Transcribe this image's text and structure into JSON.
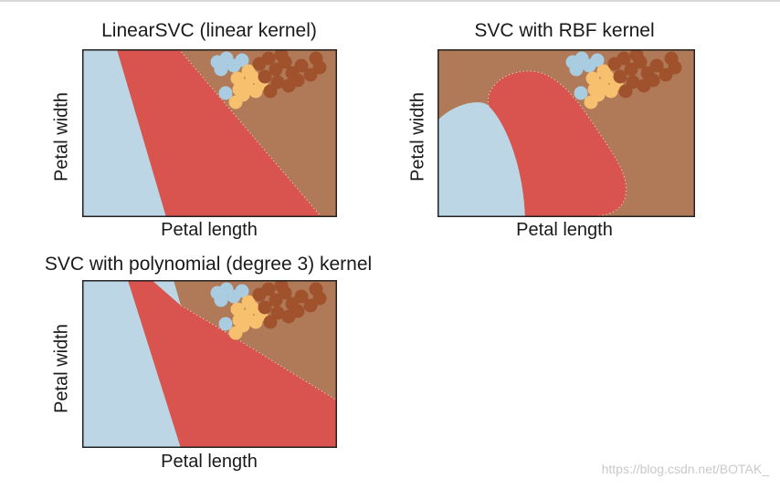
{
  "chart_data": [
    {
      "type": "scatter",
      "title": "LinearSVC (linear kernel)",
      "xlabel": "Petal length",
      "ylabel": "Petal width",
      "grid": false,
      "region_colors": [
        "#bcd6e6",
        "#d9534f",
        "#b07a58"
      ],
      "point_colors": [
        "#a9cce0",
        "#f6c06e",
        "#a0522d"
      ],
      "boundary_color": "#ffffff"
    },
    {
      "type": "scatter",
      "title": "SVC with RBF kernel",
      "xlabel": "Petal length",
      "ylabel": "Petal width",
      "grid": false,
      "region_colors": [
        "#bcd6e6",
        "#d9534f",
        "#b07a58"
      ],
      "point_colors": [
        "#a9cce0",
        "#f6c06e",
        "#a0522d"
      ],
      "boundary_color": "#ffffff"
    },
    {
      "type": "scatter",
      "title": "SVC with polynomial (degree 3) kernel",
      "xlabel": "Petal length",
      "ylabel": "Petal width",
      "grid": false,
      "region_colors": [
        "#bcd6e6",
        "#d9534f",
        "#b07a58"
      ],
      "point_colors": [
        "#a9cce0",
        "#f6c06e",
        "#a0522d"
      ],
      "boundary_color": "#ffffff"
    }
  ],
  "watermark": "https://blog.csdn.net/BOTAK_"
}
